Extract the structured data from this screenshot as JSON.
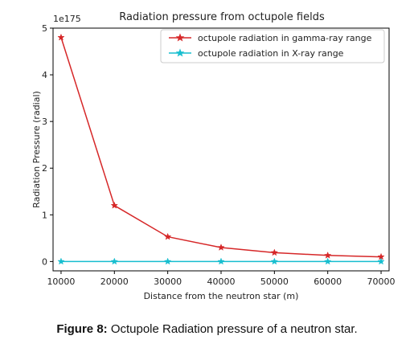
{
  "chart_data": {
    "type": "line",
    "title": "Radiation pressure from octupole fields",
    "xlabel": "Distance from the neutron star (m)",
    "ylabel": "Radiation Pressure (radial)",
    "y_scale_label": "1e175",
    "x": [
      10000,
      20000,
      30000,
      40000,
      50000,
      60000,
      70000
    ],
    "x_ticks": [
      "10000",
      "20000",
      "30000",
      "40000",
      "50000",
      "60000",
      "70000"
    ],
    "xlim": [
      8500,
      71500
    ],
    "ylim": [
      -0.2,
      5.0
    ],
    "y_ticks": [
      0,
      1,
      2,
      3,
      4,
      5
    ],
    "series": [
      {
        "name": "octupole radiation in gamma-ray range",
        "values": [
          4.8,
          1.2,
          0.53,
          0.3,
          0.19,
          0.13,
          0.1
        ],
        "color": "#d62728",
        "marker": "star"
      },
      {
        "name": "octupole radiation in X-ray range",
        "values": [
          0,
          0,
          0,
          0,
          0,
          0,
          0
        ],
        "color": "#17becf",
        "marker": "star"
      }
    ],
    "legend_position": "top-right",
    "grid": false
  },
  "caption": {
    "label": "Figure 8:",
    "text": " Octupole Radiation pressure of a neutron star."
  }
}
